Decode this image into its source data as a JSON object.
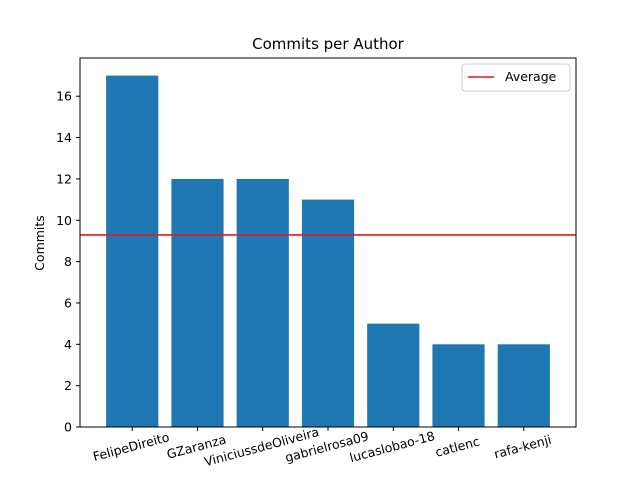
{
  "chart_data": {
    "type": "bar",
    "title": "Commits per Author",
    "xlabel": "",
    "ylabel": "Commits",
    "categories": [
      "FelipeDireito",
      "GZaranza",
      "ViniciussdeOliveira",
      "gabrielrosa09",
      "lucaslobao-18",
      "catlenc",
      "rafa-kenji"
    ],
    "values": [
      17,
      12,
      12,
      11,
      5,
      4,
      4
    ],
    "ylim": [
      0,
      17.85
    ],
    "yticks": [
      0,
      2,
      4,
      6,
      8,
      10,
      12,
      14,
      16
    ],
    "average": 9.29,
    "legend": {
      "label": "Average",
      "position": "top-right"
    },
    "grid": false,
    "colors": {
      "bar": "#1f77b4",
      "average_line": "#e41a1c",
      "axis": "#000000",
      "legend_border": "#cccccc"
    }
  }
}
